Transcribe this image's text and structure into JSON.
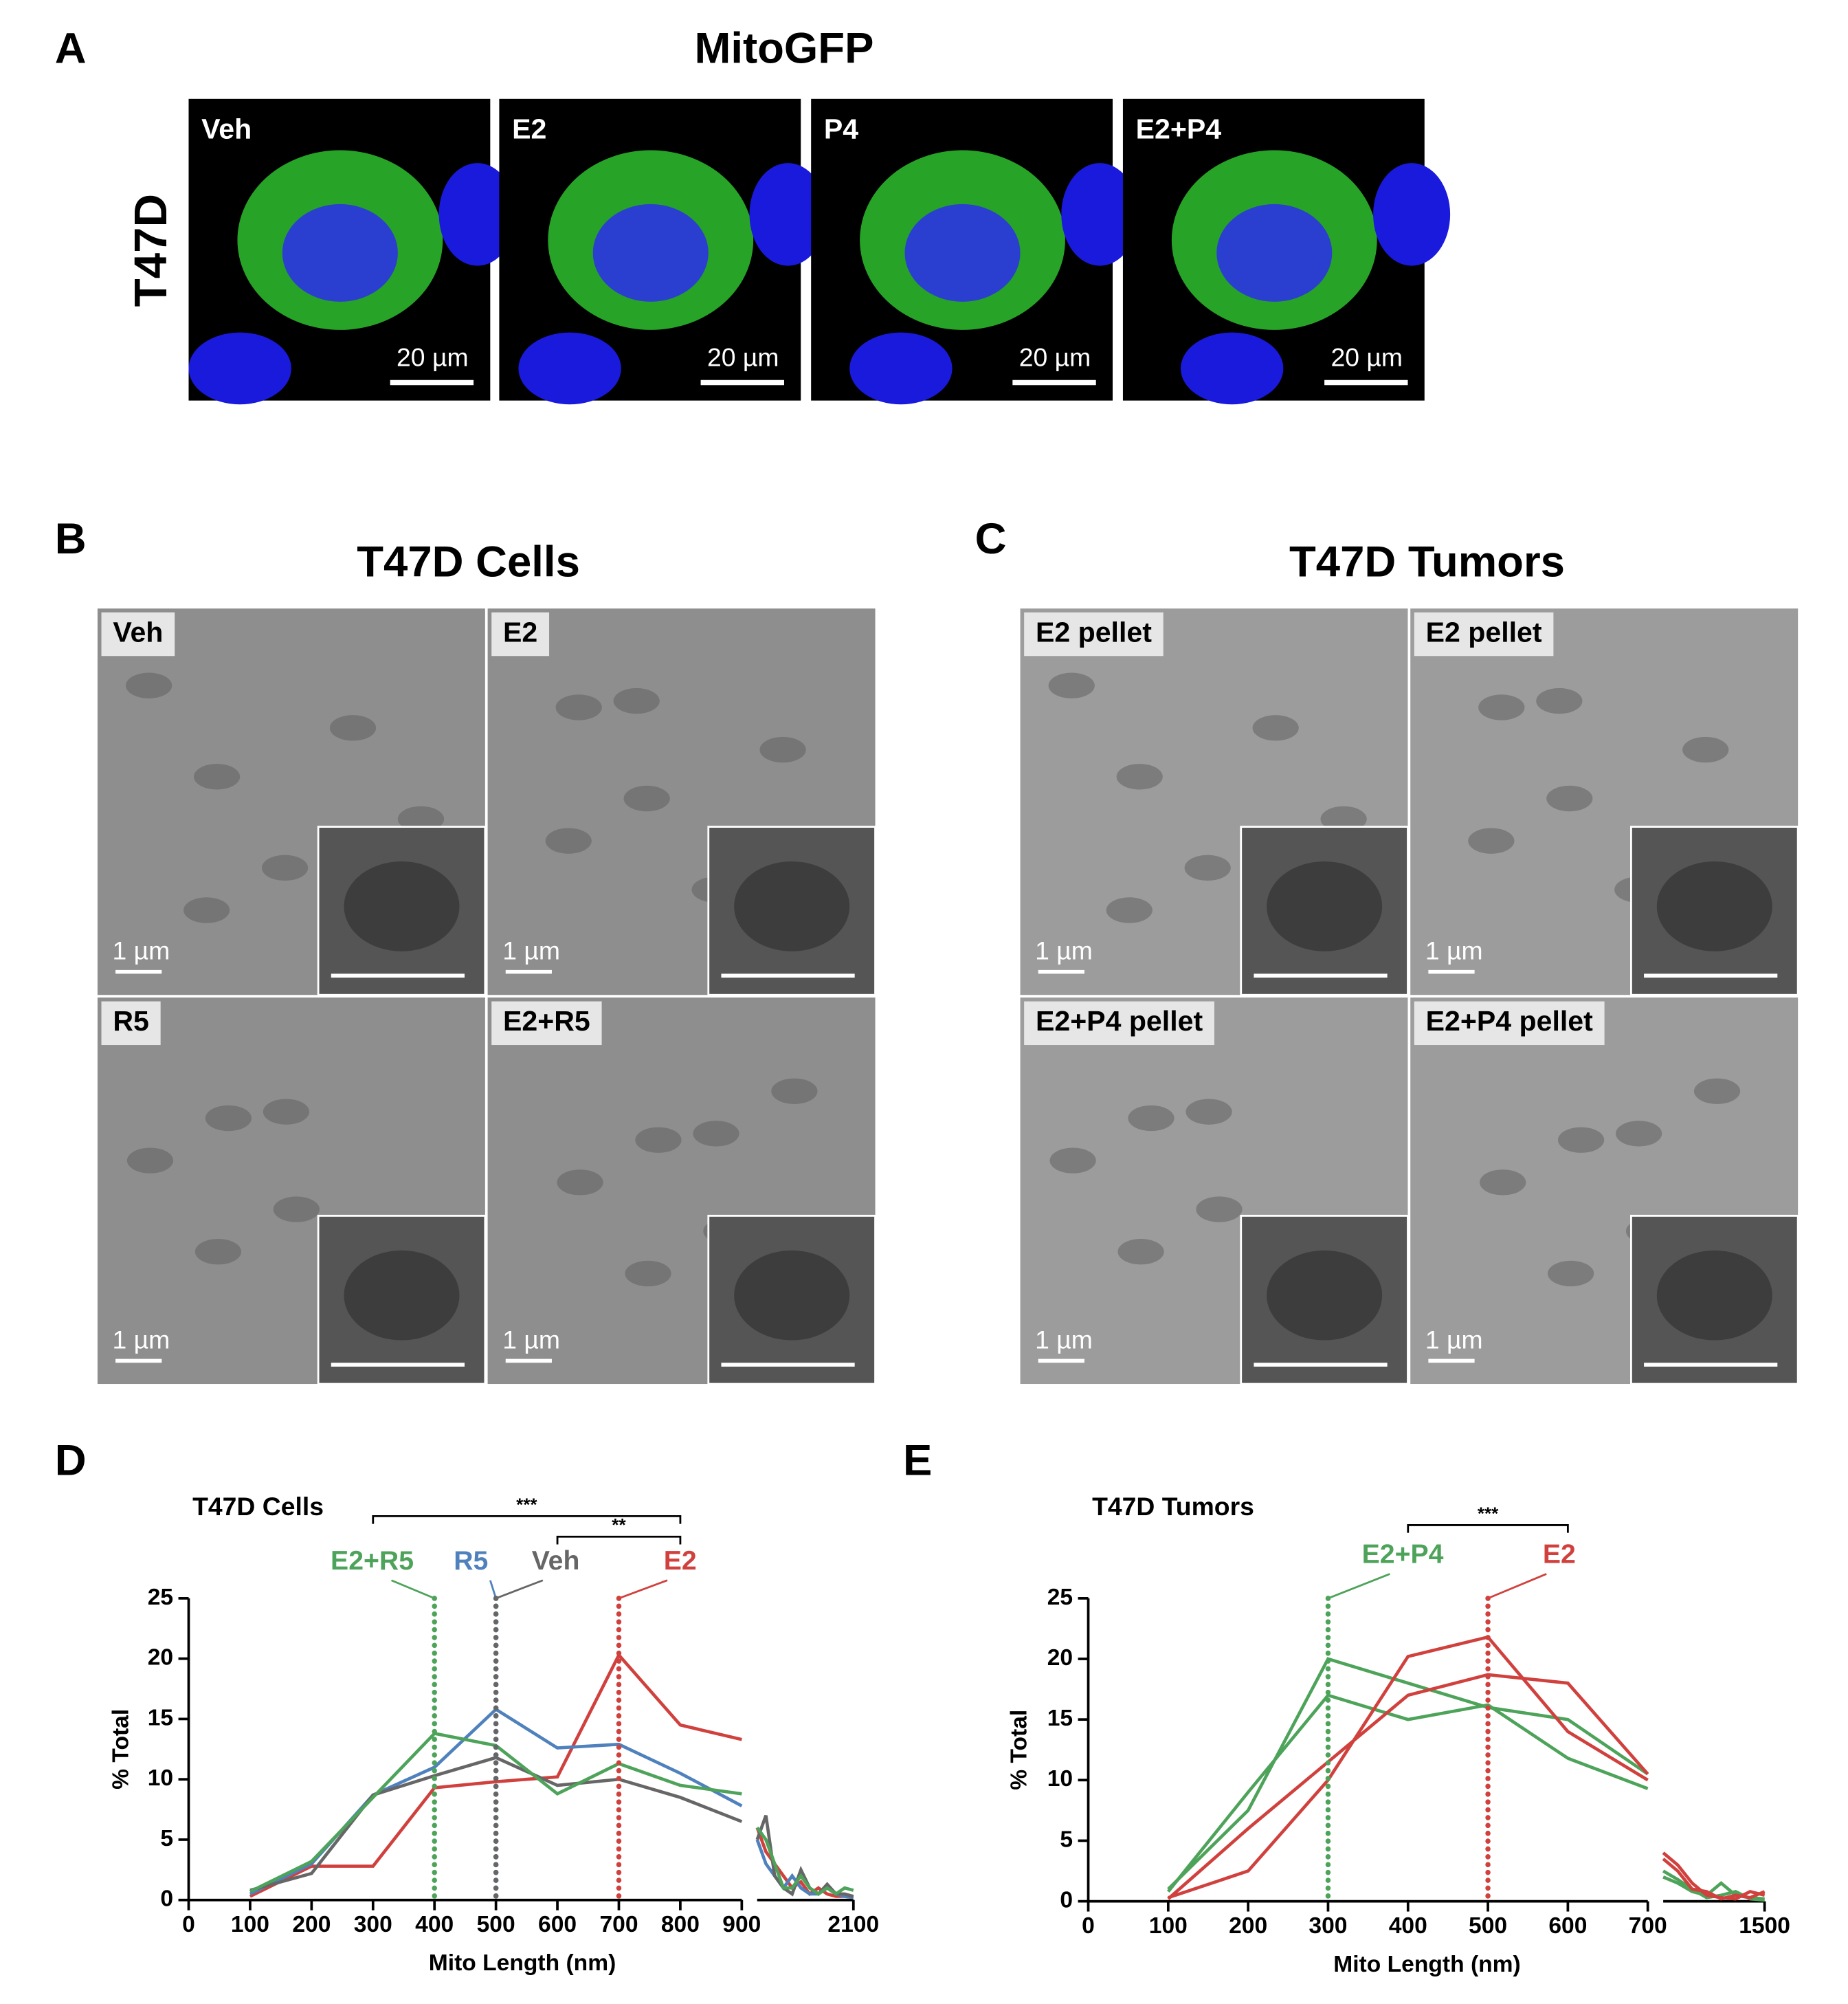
{
  "panel_letters": [
    "A",
    "B",
    "C",
    "D",
    "E"
  ],
  "mitogfp": {
    "title": "MitoGFP",
    "row_label": "T47D",
    "images": [
      {
        "label": "Veh",
        "scale": "20 µm"
      },
      {
        "label": "E2",
        "scale": "20 µm"
      },
      {
        "label": "P4",
        "scale": "20 µm"
      },
      {
        "label": "E2+P4",
        "scale": "20 µm"
      }
    ]
  },
  "em_cells": {
    "title": "T47D Cells",
    "images": [
      {
        "label": "Veh",
        "scale": "1 µm"
      },
      {
        "label": "E2",
        "scale": "1 µm"
      },
      {
        "label": "R5",
        "scale": "1 µm"
      },
      {
        "label": "E2+R5",
        "scale": "1 µm"
      }
    ]
  },
  "em_tumors": {
    "title": "T47D Tumors",
    "images": [
      {
        "label": "E2 pellet",
        "scale": "1 µm"
      },
      {
        "label": "E2 pellet",
        "scale": "1 µm"
      },
      {
        "label": "E2+P4 pellet",
        "scale": "1 µm"
      },
      {
        "label": "E2+P4 pellet",
        "scale": "1 µm"
      }
    ]
  },
  "chart_data": [
    {
      "type": "line",
      "title": "T47D Cells",
      "xlabel": "Mito Length (nm)",
      "ylabel": "% Total",
      "x": [
        100,
        200,
        300,
        400,
        500,
        600,
        700,
        800,
        900,
        1000,
        1100,
        1200,
        1300,
        1400,
        1500,
        1600,
        1700,
        1800,
        1900,
        2000,
        2100
      ],
      "xsegments": [
        [
          0,
          900
        ],
        [
          1000,
          2100
        ]
      ],
      "xticks": [
        0,
        100,
        200,
        300,
        400,
        500,
        600,
        700,
        800,
        900,
        2100
      ],
      "ylim": [
        0,
        25
      ],
      "yticks": [
        0,
        5,
        10,
        15,
        20,
        25
      ],
      "series": [
        {
          "color": "#d0413e",
          "values": [
            0.3,
            2.8,
            2.8,
            9.3,
            9.8,
            10.2,
            20.3,
            14.5,
            13.3,
            6,
            4,
            3,
            2,
            1,
            1.5,
            0.5,
            1,
            0.5,
            0.3,
            0.3,
            0.2
          ]
        },
        {
          "color": "#4f81bd",
          "values": [
            0.5,
            3,
            8.7,
            11,
            15.8,
            12.6,
            12.9,
            10.5,
            7.8,
            5,
            3,
            2,
            1,
            2,
            1,
            0.5,
            0.5,
            1,
            0.5,
            0.3,
            0.2
          ]
        },
        {
          "color": "#666666",
          "values": [
            0.8,
            2.2,
            8.7,
            10.3,
            11.8,
            9.5,
            10,
            8.5,
            6.5,
            5,
            7,
            2,
            1,
            0.5,
            2.5,
            1,
            0.5,
            1.3,
            0.5,
            0.5,
            0.3
          ]
        },
        {
          "color": "#4ea35a",
          "values": [
            0.7,
            3.2,
            8.5,
            13.8,
            12.8,
            8.8,
            11.3,
            9.5,
            8.8,
            6,
            5,
            3,
            1,
            1,
            2,
            1,
            0.5,
            1,
            0.5,
            1,
            0.8
          ]
        }
      ],
      "markers": [
        {
          "x": 400,
          "label": "E2+R5",
          "color": "#4ea35a"
        },
        {
          "x": 500,
          "label": "R5",
          "color": "#4f81bd"
        },
        {
          "x": 500,
          "label": "Veh",
          "color": "#666666"
        },
        {
          "x": 700,
          "label": "E2",
          "color": "#d0413e"
        }
      ],
      "brackets": [
        {
          "x": [
            300,
            800
          ],
          "label": "***"
        },
        {
          "x": [
            600,
            800
          ],
          "label": "**"
        }
      ]
    },
    {
      "type": "line",
      "title": "T47D Tumors",
      "xlabel": "Mito Length (nm)",
      "ylabel": "% Total",
      "x": [
        100,
        200,
        300,
        400,
        500,
        600,
        700,
        800,
        900,
        1000,
        1100,
        1200,
        1300,
        1400,
        1500
      ],
      "xsegments": [
        [
          0,
          700
        ],
        [
          800,
          1500
        ]
      ],
      "xticks": [
        0,
        100,
        200,
        300,
        400,
        500,
        600,
        700,
        1500
      ],
      "ylim": [
        0,
        25
      ],
      "yticks": [
        0,
        5,
        10,
        15,
        20,
        25
      ],
      "series": [
        {
          "color": "#4ea35a",
          "values": [
            1,
            7.5,
            20,
            18,
            16,
            15,
            10.5,
            2,
            1.5,
            0.8,
            0.5,
            1.5,
            0.5,
            0.3,
            0.2
          ]
        },
        {
          "color": "#4ea35a",
          "values": [
            0.8,
            9,
            17,
            15,
            16.2,
            11.8,
            9.3,
            2.5,
            1.8,
            1,
            0.3,
            0.5,
            0.8,
            0.2,
            0.1
          ]
        },
        {
          "color": "#d0413e",
          "values": [
            0.3,
            2.5,
            10,
            20.2,
            21.8,
            14,
            10,
            4,
            3,
            1.5,
            0.5,
            0.3,
            0.2,
            0.8,
            0.5
          ]
        },
        {
          "color": "#d0413e",
          "values": [
            0.2,
            6,
            11.5,
            17,
            18.7,
            18,
            10.5,
            3.5,
            2.5,
            1,
            0.8,
            0.2,
            0.5,
            0.3,
            0.8
          ]
        }
      ],
      "markers": [
        {
          "x": 300,
          "label": "E2+P4",
          "color": "#4ea35a"
        },
        {
          "x": 500,
          "label": "E2",
          "color": "#d0413e"
        }
      ],
      "brackets": [
        {
          "x": [
            400,
            600
          ],
          "label": "***"
        }
      ]
    }
  ]
}
